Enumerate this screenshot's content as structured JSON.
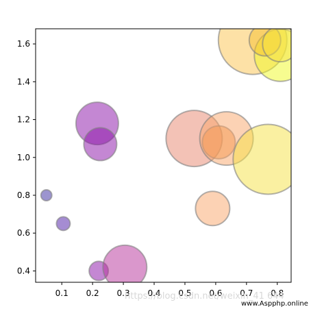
{
  "chart_data": {
    "type": "scatter",
    "title": "",
    "xlabel": "",
    "ylabel": "",
    "xlim": [
      0.015,
      0.845
    ],
    "ylim": [
      0.34,
      1.68
    ],
    "xticks": [
      0.1,
      0.2,
      0.3,
      0.4,
      0.5,
      0.6,
      0.7,
      0.8
    ],
    "yticks": [
      0.4,
      0.6,
      0.8,
      1.0,
      1.2,
      1.4,
      1.6
    ],
    "grid": false,
    "colormap": "plasma",
    "alpha": 0.5,
    "edgecolor": "#808080",
    "points": [
      {
        "x": 0.05,
        "y": 0.8,
        "size": 8,
        "color": "#3a2aa0"
      },
      {
        "x": 0.105,
        "y": 0.65,
        "size": 10,
        "color": "#4b1aa6"
      },
      {
        "x": 0.22,
        "y": 0.4,
        "size": 14,
        "color": "#8a10a8"
      },
      {
        "x": 0.215,
        "y": 1.18,
        "size": 31,
        "color": "#8a10a8"
      },
      {
        "x": 0.225,
        "y": 1.07,
        "size": 24,
        "color": "#8a10a8"
      },
      {
        "x": 0.305,
        "y": 0.42,
        "size": 32,
        "color": "#b52f9a"
      },
      {
        "x": 0.53,
        "y": 1.1,
        "size": 41,
        "color": "#e8856e"
      },
      {
        "x": 0.61,
        "y": 1.08,
        "size": 24,
        "color": "#ee8a38"
      },
      {
        "x": 0.635,
        "y": 1.1,
        "size": 39,
        "color": "#f9a66a"
      },
      {
        "x": 0.59,
        "y": 0.73,
        "size": 25,
        "color": "#f9a66a"
      },
      {
        "x": 0.77,
        "y": 0.99,
        "size": 51,
        "color": "#f5e144"
      },
      {
        "x": 0.72,
        "y": 1.62,
        "size": 50,
        "color": "#fbc44e"
      },
      {
        "x": 0.81,
        "y": 1.54,
        "size": 38,
        "color": "#f0f921"
      },
      {
        "x": 0.76,
        "y": 1.62,
        "size": 23,
        "color": "#f5c02b"
      },
      {
        "x": 0.81,
        "y": 1.6,
        "size": 26,
        "color": "#f5e144"
      }
    ]
  },
  "watermark": {
    "text1": "https://blog.csdn.net/weixin_41    644",
    "text2": "www.Aspphp.online"
  }
}
